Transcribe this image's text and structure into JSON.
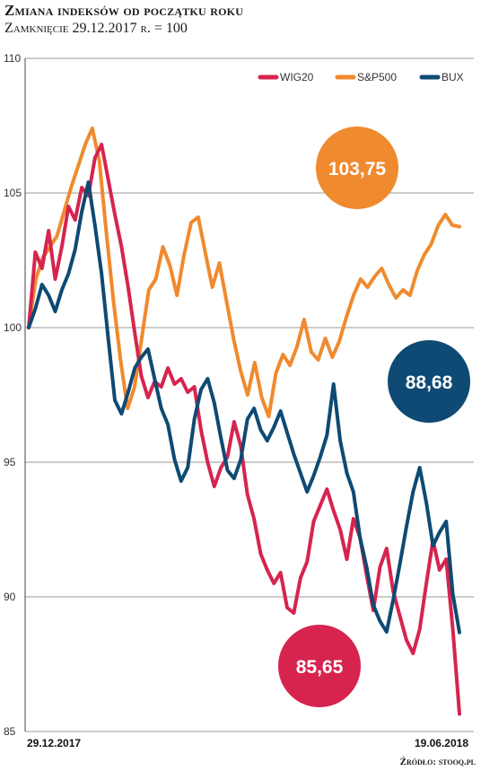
{
  "chart_data": {
    "type": "line",
    "title": "Zmiana indeksów od początku roku",
    "subtitle": "Zamknięcie 29.12.2017 r. = 100",
    "x_start_label": "29.12.2017",
    "x_end_label": "19.06.2018",
    "ylim": [
      85,
      110
    ],
    "yticks": [
      85,
      90,
      95,
      100,
      105,
      110
    ],
    "grid": true,
    "legend_position": "top-right",
    "source": "Źródło: stooq.pl",
    "series": [
      {
        "name": "WIG20",
        "color": "#d6244f",
        "final_label": "85,65",
        "values": [
          100.0,
          102.8,
          102.2,
          103.6,
          101.8,
          103.0,
          104.5,
          104.0,
          105.2,
          104.9,
          106.3,
          106.8,
          105.5,
          104.2,
          103.0,
          101.5,
          99.8,
          98.2,
          97.4,
          98.0,
          97.8,
          98.5,
          97.9,
          98.1,
          97.6,
          97.8,
          96.2,
          95.0,
          94.1,
          94.8,
          95.2,
          96.5,
          95.6,
          93.8,
          92.9,
          91.6,
          91.0,
          90.5,
          90.9,
          89.6,
          89.4,
          90.7,
          91.3,
          92.8,
          93.4,
          94.0,
          93.2,
          92.5,
          91.4,
          92.9,
          92.2,
          90.8,
          89.5,
          91.1,
          91.8,
          90.2,
          89.3,
          88.4,
          87.9,
          88.8,
          90.5,
          92.1,
          91.0,
          91.4,
          88.8,
          85.65
        ]
      },
      {
        "name": "S&P500",
        "color": "#f08a2e",
        "final_label": "103,75",
        "values": [
          100.0,
          101.8,
          102.6,
          103.0,
          103.4,
          104.3,
          105.2,
          106.0,
          106.8,
          107.4,
          106.2,
          103.5,
          101.0,
          98.8,
          97.0,
          97.8,
          99.6,
          101.4,
          101.8,
          103.0,
          102.3,
          101.2,
          102.7,
          103.9,
          104.1,
          102.8,
          101.5,
          102.4,
          101.0,
          99.6,
          98.4,
          97.5,
          98.7,
          97.4,
          96.7,
          98.3,
          99.0,
          98.6,
          99.3,
          100.3,
          99.1,
          98.8,
          99.6,
          98.9,
          99.5,
          100.4,
          101.2,
          101.8,
          101.5,
          101.9,
          102.2,
          101.6,
          101.1,
          101.4,
          101.2,
          102.1,
          102.7,
          103.1,
          103.8,
          104.2,
          103.8,
          103.75
        ]
      },
      {
        "name": "BUX",
        "color": "#0e4a73",
        "final_label": "88,68",
        "values": [
          100.0,
          100.7,
          101.6,
          101.2,
          100.6,
          101.4,
          102.0,
          102.9,
          104.3,
          105.4,
          103.8,
          102.0,
          99.6,
          97.3,
          96.8,
          97.6,
          98.5,
          98.9,
          99.2,
          98.1,
          97.0,
          96.4,
          95.1,
          94.3,
          94.8,
          96.6,
          97.7,
          98.1,
          97.2,
          95.9,
          94.7,
          94.4,
          95.1,
          96.6,
          97.0,
          96.2,
          95.8,
          96.3,
          96.9,
          96.1,
          95.3,
          94.6,
          93.9,
          94.5,
          95.2,
          96.0,
          97.9,
          95.8,
          94.6,
          93.9,
          92.2,
          91.1,
          89.7,
          89.1,
          88.7,
          89.9,
          91.2,
          92.6,
          93.9,
          94.8,
          93.5,
          91.9,
          92.4,
          92.8,
          90.1,
          88.68
        ]
      }
    ]
  }
}
